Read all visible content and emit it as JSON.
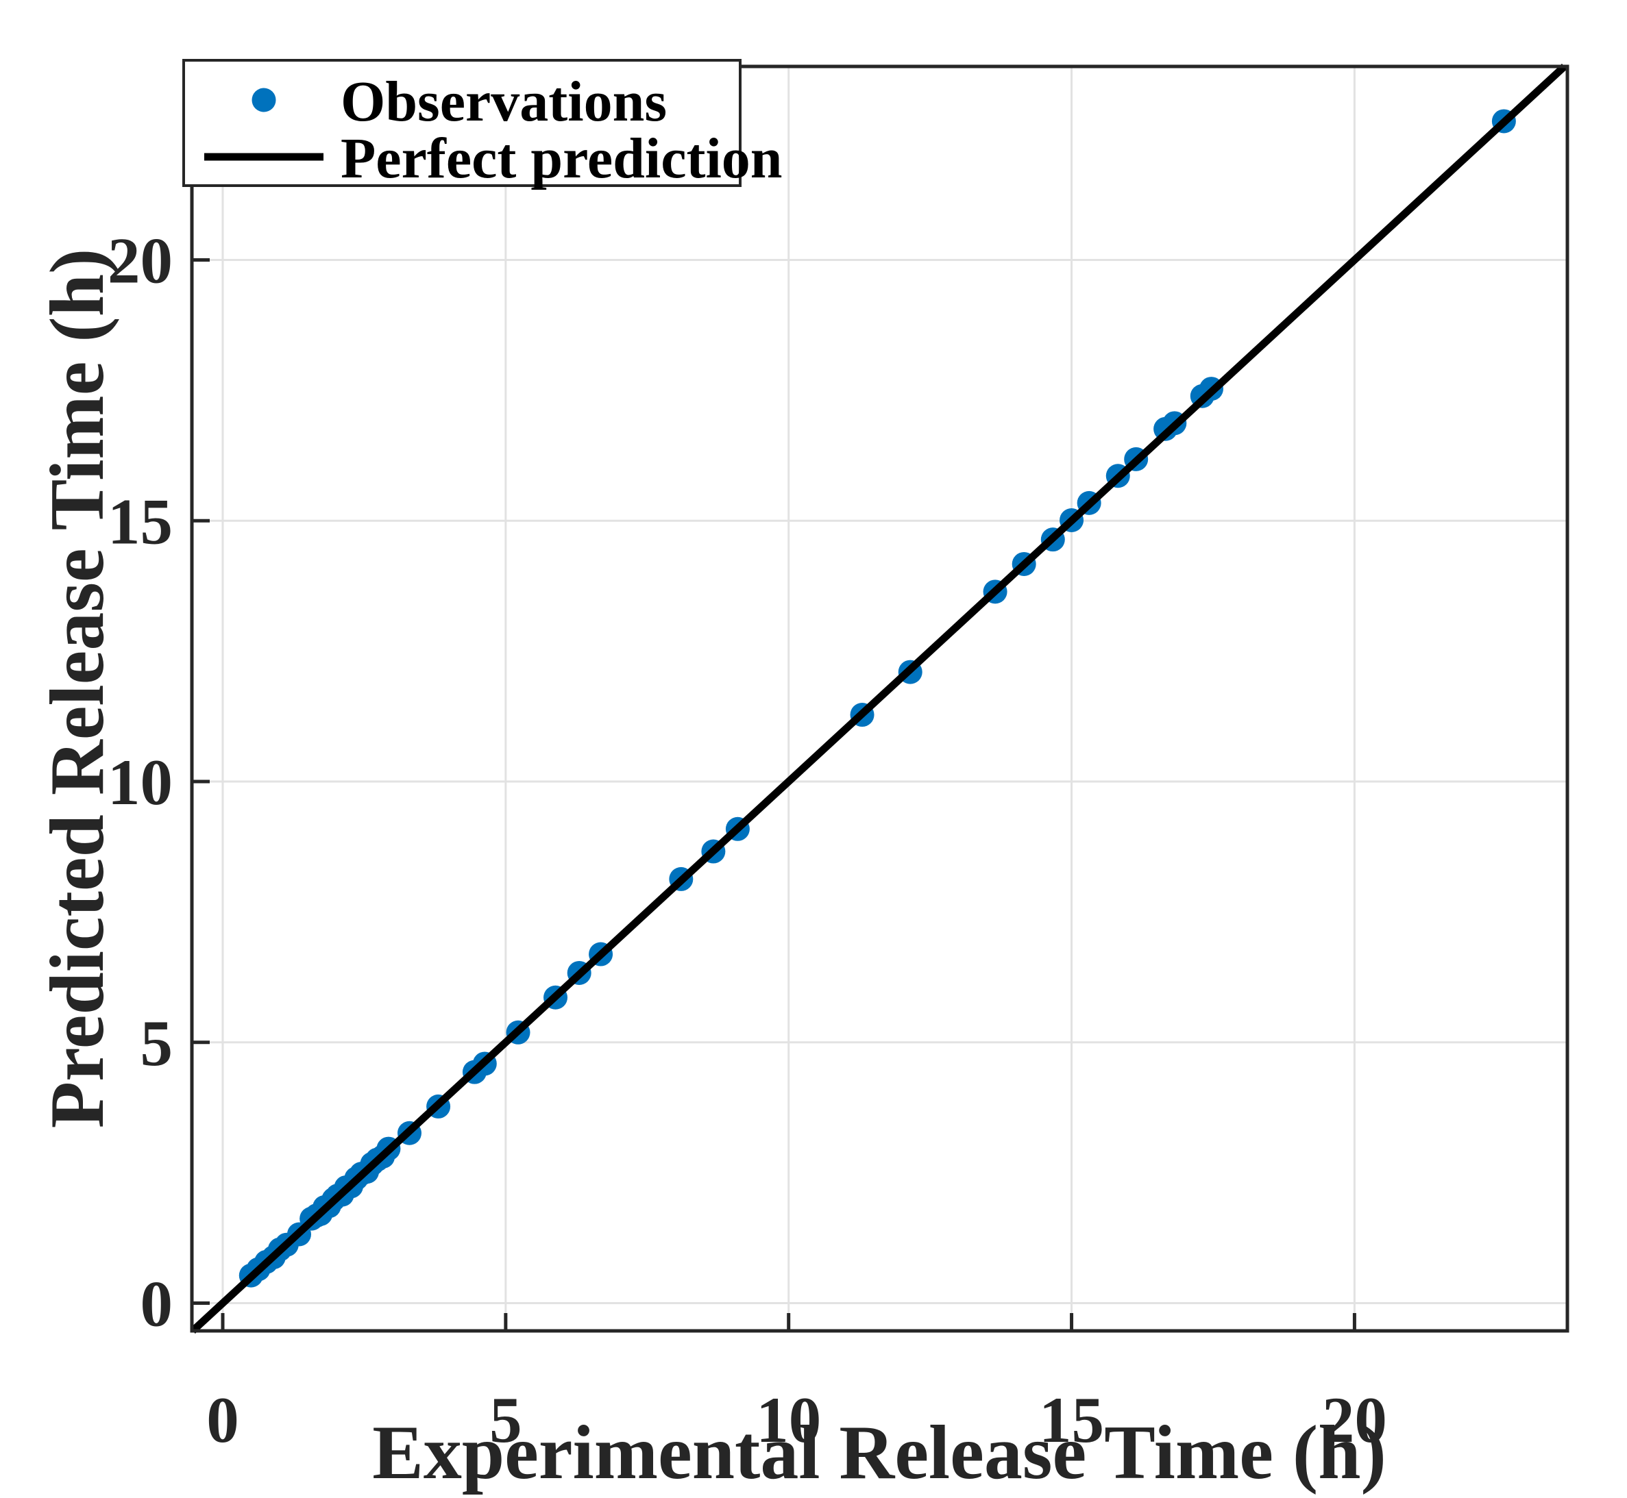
{
  "chart_data": {
    "type": "scatter",
    "title": "",
    "xlabel": "Experimental Release Time (h)",
    "ylabel": "Predicted Release Time (h)",
    "xlim": [
      -0.55,
      23.75
    ],
    "ylim": [
      -0.55,
      23.7
    ],
    "x_ticks": [
      "0",
      "5",
      "10",
      "15",
      "20"
    ],
    "x_tick_values": [
      0,
      5,
      10,
      15,
      20
    ],
    "y_ticks": [
      "0",
      "5",
      "10",
      "15",
      "20"
    ],
    "y_tick_values": [
      0,
      5,
      10,
      15,
      20
    ],
    "grid": true,
    "legend": {
      "position": "northwest",
      "entries": [
        {
          "label": "Observations",
          "type": "marker",
          "color": "#0072BD"
        },
        {
          "label": "Perfect prediction",
          "type": "line",
          "color": "#000000"
        }
      ]
    },
    "series": [
      {
        "name": "Observations",
        "marker": "circle",
        "color": "#0072BD",
        "points": [
          [
            0.5,
            0.53
          ],
          [
            0.63,
            0.65
          ],
          [
            0.77,
            0.79
          ],
          [
            0.9,
            0.88
          ],
          [
            1.01,
            1.03
          ],
          [
            1.13,
            1.12
          ],
          [
            1.35,
            1.32
          ],
          [
            1.57,
            1.62
          ],
          [
            1.66,
            1.68
          ],
          [
            1.73,
            1.71
          ],
          [
            1.8,
            1.84
          ],
          [
            1.88,
            1.86
          ],
          [
            1.96,
            1.99
          ],
          [
            2.03,
            2.06
          ],
          [
            2.11,
            2.08
          ],
          [
            2.18,
            2.22
          ],
          [
            2.27,
            2.24
          ],
          [
            2.36,
            2.39
          ],
          [
            2.45,
            2.48
          ],
          [
            2.55,
            2.52
          ],
          [
            2.64,
            2.67
          ],
          [
            2.73,
            2.75
          ],
          [
            2.83,
            2.81
          ],
          [
            2.93,
            2.96
          ],
          [
            3.3,
            3.26
          ],
          [
            3.81,
            3.77
          ],
          [
            4.45,
            4.43
          ],
          [
            4.63,
            4.59
          ],
          [
            5.22,
            5.19
          ],
          [
            5.88,
            5.86
          ],
          [
            6.3,
            6.33
          ],
          [
            6.68,
            6.69
          ],
          [
            8.1,
            8.13
          ],
          [
            8.67,
            8.66
          ],
          [
            9.1,
            9.09
          ],
          [
            11.3,
            11.28
          ],
          [
            12.15,
            12.1
          ],
          [
            13.65,
            13.64
          ],
          [
            14.16,
            14.17
          ],
          [
            14.67,
            14.64
          ],
          [
            15.0,
            15.01
          ],
          [
            15.31,
            15.34
          ],
          [
            15.82,
            15.86
          ],
          [
            16.14,
            16.18
          ],
          [
            16.66,
            16.76
          ],
          [
            16.82,
            16.87
          ],
          [
            17.31,
            17.39
          ],
          [
            17.47,
            17.53
          ],
          [
            22.64,
            22.66
          ]
        ]
      }
    ],
    "reference_line": {
      "name": "Perfect prediction",
      "equation": "y = x",
      "color": "#000000"
    },
    "colors": {
      "marker": "#0072BD",
      "line": "#000000",
      "grid": "#e2e2e2",
      "axis": "#262626",
      "background": "#ffffff"
    }
  }
}
